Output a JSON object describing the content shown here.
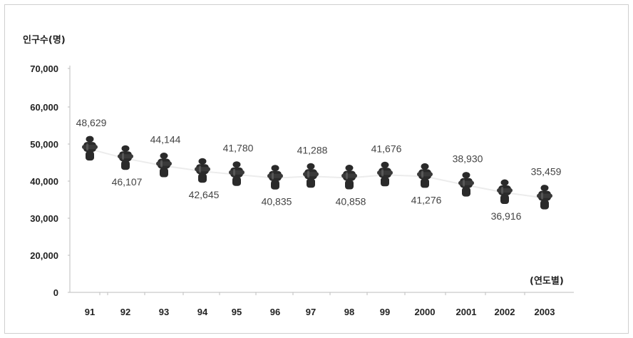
{
  "chart_data": {
    "type": "line",
    "title": "",
    "ylabel": "인구수(명)",
    "xlabel": "(연도별)",
    "ylim": [
      0,
      70000
    ],
    "yticks": [
      "0",
      "20,000",
      "30,000",
      "40,000",
      "50,000",
      "60,000",
      "70,000"
    ],
    "ytick_values": [
      0,
      20000,
      30000,
      40000,
      50000,
      60000,
      70000
    ],
    "categories": [
      "91",
      "92",
      "93",
      "94",
      "95",
      "96",
      "97",
      "98",
      "99",
      "2000",
      "2001",
      "2002",
      "2003"
    ],
    "values": [
      48629,
      46107,
      44144,
      42645,
      41780,
      40835,
      41288,
      40858,
      41676,
      41276,
      38930,
      36916,
      35459
    ],
    "labels": [
      "48,629",
      "46,107",
      "44,144",
      "42,645",
      "41,780",
      "40,835",
      "41,288",
      "40,858",
      "41,676",
      "41,276",
      "38,930",
      "36,916",
      "35,459"
    ],
    "label_positions": [
      "above",
      "below",
      "above",
      "below",
      "above",
      "below",
      "above",
      "below",
      "above",
      "below",
      "above",
      "below",
      "above"
    ],
    "marker": "person-figure",
    "grid": false,
    "legend": "none",
    "colors": {
      "marker": "#2a2a2a",
      "line": "#ececec",
      "axis": "#bdbdbd"
    }
  }
}
